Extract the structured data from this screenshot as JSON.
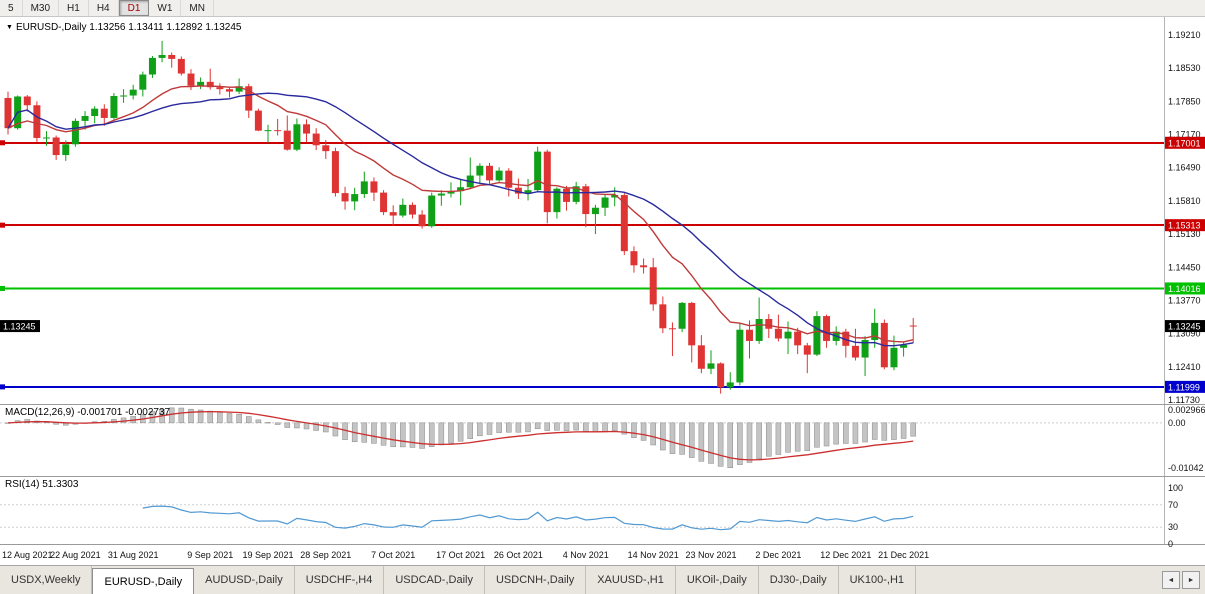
{
  "toolbar": {
    "timeframes": [
      {
        "label": "5",
        "active": false
      },
      {
        "label": "M30",
        "active": false
      },
      {
        "label": "H1",
        "active": false
      },
      {
        "label": "H4",
        "active": false
      },
      {
        "label": "D1",
        "active": true
      },
      {
        "label": "W1",
        "active": false
      },
      {
        "label": "MN",
        "active": false
      }
    ]
  },
  "chart": {
    "collapse_icon": "▼",
    "title_text": "EURUSD-,Daily  1.13256 1.13411 1.12892 1.13245"
  },
  "indicators": {
    "macd_label": "MACD(12,26,9) -0.001701 -0.002737",
    "rsi_label": "RSI(14) 51.3303"
  },
  "chart_data": {
    "type": "candlestick",
    "symbol": "EURUSD-",
    "timeframe": "Daily",
    "ohlc_current": {
      "open": 1.13256,
      "high": 1.13411,
      "low": 1.12892,
      "close": 1.13245
    },
    "up_color": "#0fa018",
    "down_color": "#df3434",
    "y_axis_labels": [
      "1.19210",
      "1.18530",
      "1.17850",
      "1.17170",
      "1.16490",
      "1.15810",
      "1.15130",
      "1.14450",
      "1.13770",
      "1.13090",
      "1.12410",
      "1.11730"
    ],
    "x_ticks": [
      {
        "i": 0,
        "label": "12 Aug 2021"
      },
      {
        "i": 7,
        "label": "22 Aug 2021"
      },
      {
        "i": 13,
        "label": "31 Aug 2021"
      },
      {
        "i": 21,
        "label": "9 Sep 2021"
      },
      {
        "i": 27,
        "label": "19 Sep 2021"
      },
      {
        "i": 33,
        "label": "28 Sep 2021"
      },
      {
        "i": 40,
        "label": "7 Oct 2021"
      },
      {
        "i": 47,
        "label": "17 Oct 2021"
      },
      {
        "i": 53,
        "label": "26 Oct 2021"
      },
      {
        "i": 60,
        "label": "4 Nov 2021"
      },
      {
        "i": 67,
        "label": "14 Nov 2021"
      },
      {
        "i": 73,
        "label": "23 Nov 2021"
      },
      {
        "i": 80,
        "label": "2 Dec 2021"
      },
      {
        "i": 87,
        "label": "12 Dec 2021"
      },
      {
        "i": 93,
        "label": "21 Dec 2021"
      }
    ],
    "h_lines": [
      {
        "price": 1.17001,
        "label": "1.17001",
        "color": "#cc0000"
      },
      {
        "price": 1.15313,
        "label": "1.15313",
        "color": "#cc0000"
      },
      {
        "price": 1.14016,
        "label": "1.14016",
        "color": "#00c000"
      },
      {
        "price": 1.11999,
        "label": "1.11999",
        "color": "#0000cc"
      }
    ],
    "current_price": {
      "price": 1.13245,
      "label": "1.13245",
      "color": "#000000"
    },
    "ma_lines": [
      {
        "period": 13,
        "method": "ema",
        "color": "#c03a3a"
      },
      {
        "period": 21,
        "method": "sma",
        "color": "#2a2a9e"
      }
    ],
    "macd": {
      "fast": 12,
      "slow": 26,
      "signal_period": 9,
      "value": -0.001701,
      "signal_value": -0.002737,
      "histogram_color": "#c4c4c4",
      "histogram_edge": "#8a8a8a",
      "signal_color": "#cc2f2f",
      "axis_labels": [
        {
          "v": 0.002966,
          "label": "0.002966"
        },
        {
          "v": 0,
          "label": "0.00"
        },
        {
          "v": -0.01042,
          "label": "-0.01042"
        }
      ]
    },
    "rsi": {
      "period": 14,
      "value": 51.3303,
      "color": "#5199d3",
      "axis_labels": [
        {
          "v": 100,
          "label": "100"
        },
        {
          "v": 70,
          "label": "70"
        },
        {
          "v": 30,
          "label": "30"
        },
        {
          "v": 0,
          "label": "0"
        }
      ],
      "levels": [
        70,
        30
      ]
    },
    "candles": [
      [
        1.1792,
        1.1805,
        1.1717,
        1.173
      ],
      [
        1.173,
        1.1797,
        1.1727,
        1.1795
      ],
      [
        1.1795,
        1.1798,
        1.1764,
        1.1777
      ],
      [
        1.1777,
        1.1785,
        1.1702,
        1.171
      ],
      [
        1.171,
        1.1724,
        1.1694,
        1.1711
      ],
      [
        1.1711,
        1.1715,
        1.1665,
        1.1675
      ],
      [
        1.1675,
        1.1705,
        1.1663,
        1.1697
      ],
      [
        1.1697,
        1.175,
        1.1692,
        1.1745
      ],
      [
        1.1745,
        1.1765,
        1.1727,
        1.1755
      ],
      [
        1.1755,
        1.1775,
        1.174,
        1.177
      ],
      [
        1.177,
        1.1779,
        1.1735,
        1.1751
      ],
      [
        1.1751,
        1.1802,
        1.1748,
        1.1796
      ],
      [
        1.1796,
        1.181,
        1.1782,
        1.1797
      ],
      [
        1.1797,
        1.1819,
        1.1789,
        1.1809
      ],
      [
        1.1809,
        1.1846,
        1.1795,
        1.184
      ],
      [
        1.184,
        1.1878,
        1.1833,
        1.1874
      ],
      [
        1.1874,
        1.1909,
        1.1865,
        1.188
      ],
      [
        1.188,
        1.1885,
        1.1854,
        1.1872
      ],
      [
        1.1872,
        1.1877,
        1.1838,
        1.1842
      ],
      [
        1.1842,
        1.1851,
        1.1808,
        1.1817
      ],
      [
        1.1817,
        1.1834,
        1.181,
        1.1825
      ],
      [
        1.1825,
        1.1852,
        1.1809,
        1.1814
      ],
      [
        1.1814,
        1.1822,
        1.1799,
        1.181
      ],
      [
        1.181,
        1.1815,
        1.1793,
        1.1805
      ],
      [
        1.1805,
        1.1832,
        1.18,
        1.1816
      ],
      [
        1.1816,
        1.1821,
        1.1751,
        1.1766
      ],
      [
        1.1766,
        1.177,
        1.1724,
        1.1725
      ],
      [
        1.1725,
        1.1737,
        1.17,
        1.1726
      ],
      [
        1.1726,
        1.1749,
        1.1715,
        1.1725
      ],
      [
        1.1725,
        1.1756,
        1.1684,
        1.1686
      ],
      [
        1.1686,
        1.175,
        1.1683,
        1.1738
      ],
      [
        1.1738,
        1.1748,
        1.1701,
        1.1719
      ],
      [
        1.1719,
        1.173,
        1.1685,
        1.1695
      ],
      [
        1.1695,
        1.1706,
        1.1667,
        1.1683
      ],
      [
        1.1683,
        1.169,
        1.159,
        1.1597
      ],
      [
        1.1597,
        1.161,
        1.1563,
        1.158
      ],
      [
        1.158,
        1.1608,
        1.1562,
        1.1595
      ],
      [
        1.1595,
        1.1641,
        1.1587,
        1.1621
      ],
      [
        1.1621,
        1.1629,
        1.1581,
        1.1598
      ],
      [
        1.1598,
        1.1603,
        1.1552,
        1.1558
      ],
      [
        1.1558,
        1.1572,
        1.153,
        1.1551
      ],
      [
        1.1551,
        1.1586,
        1.1547,
        1.1573
      ],
      [
        1.1573,
        1.1578,
        1.1545,
        1.1553
      ],
      [
        1.1553,
        1.1562,
        1.1524,
        1.1529
      ],
      [
        1.1529,
        1.1598,
        1.1526,
        1.1592
      ],
      [
        1.1592,
        1.1603,
        1.1571,
        1.1596
      ],
      [
        1.1596,
        1.1619,
        1.1588,
        1.1601
      ],
      [
        1.1601,
        1.1626,
        1.1572,
        1.1609
      ],
      [
        1.1609,
        1.167,
        1.1607,
        1.1633
      ],
      [
        1.1633,
        1.1658,
        1.1617,
        1.1653
      ],
      [
        1.1653,
        1.1659,
        1.1616,
        1.1623
      ],
      [
        1.1623,
        1.165,
        1.162,
        1.1643
      ],
      [
        1.1643,
        1.1648,
        1.159,
        1.1608
      ],
      [
        1.1608,
        1.1627,
        1.1585,
        1.1596
      ],
      [
        1.1596,
        1.1626,
        1.1582,
        1.1603
      ],
      [
        1.1603,
        1.1692,
        1.1601,
        1.1682
      ],
      [
        1.1682,
        1.1686,
        1.1535,
        1.1558
      ],
      [
        1.1558,
        1.1609,
        1.1545,
        1.1606
      ],
      [
        1.1606,
        1.1612,
        1.1561,
        1.1579
      ],
      [
        1.1579,
        1.162,
        1.1574,
        1.1611
      ],
      [
        1.1611,
        1.1616,
        1.1527,
        1.1554
      ],
      [
        1.1554,
        1.1573,
        1.1513,
        1.1567
      ],
      [
        1.1567,
        1.1595,
        1.155,
        1.1588
      ],
      [
        1.1588,
        1.1609,
        1.157,
        1.1593
      ],
      [
        1.1593,
        1.1597,
        1.147,
        1.1478
      ],
      [
        1.1478,
        1.1488,
        1.1434,
        1.1449
      ],
      [
        1.1449,
        1.1463,
        1.1432,
        1.1445
      ],
      [
        1.1445,
        1.1464,
        1.1356,
        1.1369
      ],
      [
        1.1369,
        1.1385,
        1.131,
        1.132
      ],
      [
        1.132,
        1.1332,
        1.1263,
        1.1319
      ],
      [
        1.1319,
        1.1374,
        1.1312,
        1.1372
      ],
      [
        1.1372,
        1.1374,
        1.125,
        1.1285
      ],
      [
        1.1285,
        1.1306,
        1.1228,
        1.1237
      ],
      [
        1.1237,
        1.1275,
        1.1226,
        1.1248
      ],
      [
        1.1248,
        1.125,
        1.1186,
        1.1199
      ],
      [
        1.1199,
        1.123,
        1.1194,
        1.1209
      ],
      [
        1.1209,
        1.133,
        1.1203,
        1.1317
      ],
      [
        1.1317,
        1.1336,
        1.1258,
        1.1294
      ],
      [
        1.1294,
        1.1383,
        1.1288,
        1.1339
      ],
      [
        1.1339,
        1.1349,
        1.13,
        1.1319
      ],
      [
        1.1319,
        1.1348,
        1.1293,
        1.1299
      ],
      [
        1.1299,
        1.1334,
        1.1267,
        1.1313
      ],
      [
        1.1313,
        1.1321,
        1.1267,
        1.1285
      ],
      [
        1.1285,
        1.129,
        1.1228,
        1.1266
      ],
      [
        1.1266,
        1.1355,
        1.1263,
        1.1345
      ],
      [
        1.1345,
        1.1348,
        1.128,
        1.1294
      ],
      [
        1.1294,
        1.1324,
        1.1285,
        1.1313
      ],
      [
        1.1313,
        1.1319,
        1.126,
        1.1284
      ],
      [
        1.1284,
        1.1319,
        1.1254,
        1.126
      ],
      [
        1.126,
        1.1304,
        1.1222,
        1.1296
      ],
      [
        1.1296,
        1.136,
        1.128,
        1.1331
      ],
      [
        1.1331,
        1.1338,
        1.1236,
        1.124
      ],
      [
        1.124,
        1.1305,
        1.1234,
        1.128
      ],
      [
        1.128,
        1.1293,
        1.1262,
        1.1286
      ],
      [
        1.13256,
        1.13411,
        1.12892,
        1.13245
      ]
    ]
  },
  "tabbar": {
    "scroll_left_icon": "◄",
    "scroll_right_icon": "►",
    "tabs": [
      {
        "label": "USDX,Weekly",
        "active": false
      },
      {
        "label": "EURUSD-,Daily",
        "active": true
      },
      {
        "label": "AUDUSD-,Daily",
        "active": false
      },
      {
        "label": "USDCHF-,H4",
        "active": false
      },
      {
        "label": "USDCAD-,Daily",
        "active": false
      },
      {
        "label": "USDCNH-,Daily",
        "active": false
      },
      {
        "label": "XAUUSD-,H1",
        "active": false
      },
      {
        "label": "UKOil-,Daily",
        "active": false
      },
      {
        "label": "DJ30-,Daily",
        "active": false
      },
      {
        "label": "UK100-,H1",
        "active": false
      }
    ]
  }
}
